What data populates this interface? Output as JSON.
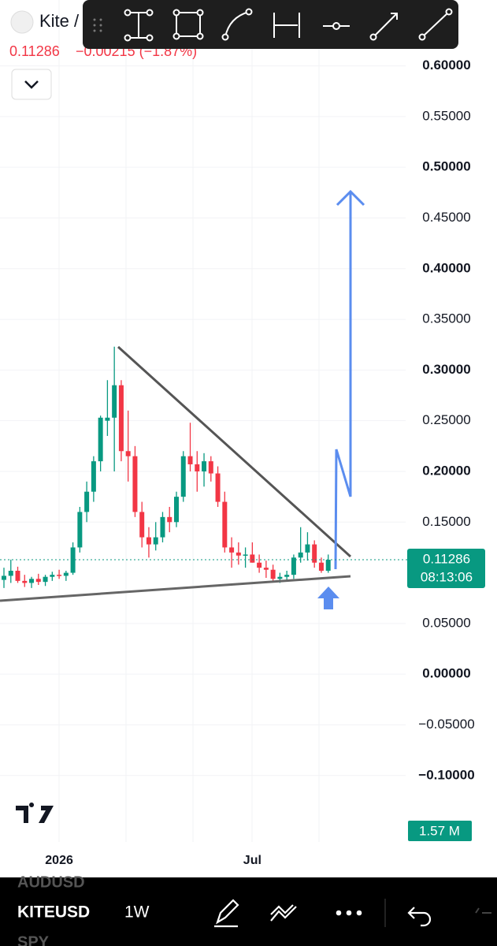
{
  "header": {
    "symbol": "Kite /",
    "price": "0.11286",
    "change": "−0.00215 (−1.87%)"
  },
  "chart_data": {
    "type": "candlestick",
    "categories": [
      null,
      null,
      null,
      null,
      null,
      null,
      null,
      null,
      "2026",
      null,
      null,
      null,
      null,
      null,
      null,
      null,
      null,
      null,
      null,
      null,
      null,
      null,
      null,
      null,
      null,
      null,
      null,
      null,
      null,
      null,
      null,
      null,
      null,
      null,
      null,
      null,
      "Jul",
      null,
      null,
      null,
      null,
      null,
      null,
      null,
      null,
      null,
      null,
      null
    ],
    "open": [
      0.093,
      0.097,
      0.102,
      0.092,
      0.09,
      0.094,
      0.091,
      0.096,
      0.098,
      0.097,
      0.1,
      0.125,
      0.16,
      0.18,
      0.21,
      0.25,
      0.253,
      0.285,
      0.22,
      0.215,
      0.16,
      0.135,
      0.128,
      0.135,
      0.155,
      0.15,
      0.175,
      0.215,
      0.207,
      0.2,
      0.21,
      0.198,
      0.17,
      0.125,
      0.12,
      0.117,
      0.118,
      0.11,
      0.105,
      0.103,
      0.094,
      0.096,
      0.098,
      0.115,
      0.12,
      0.128,
      0.11,
      0.102
    ],
    "high": [
      0.105,
      0.113,
      0.106,
      0.098,
      0.096,
      0.099,
      0.098,
      0.101,
      0.103,
      0.102,
      0.13,
      0.165,
      0.19,
      0.215,
      0.255,
      0.29,
      0.323,
      0.29,
      0.26,
      0.225,
      0.17,
      0.145,
      0.15,
      0.16,
      0.165,
      0.18,
      0.22,
      0.248,
      0.22,
      0.218,
      0.215,
      0.205,
      0.18,
      0.135,
      0.13,
      0.125,
      0.13,
      0.118,
      0.112,
      0.108,
      0.1,
      0.102,
      0.118,
      0.145,
      0.14,
      0.132,
      0.115,
      0.118
    ],
    "low": [
      0.085,
      0.09,
      0.09,
      0.086,
      0.085,
      0.088,
      0.087,
      0.092,
      0.094,
      0.092,
      0.098,
      0.12,
      0.15,
      0.17,
      0.2,
      0.235,
      0.2,
      0.21,
      0.19,
      0.155,
      0.125,
      0.115,
      0.122,
      0.13,
      0.14,
      0.145,
      0.17,
      0.2,
      0.18,
      0.185,
      0.19,
      0.165,
      0.12,
      0.105,
      0.108,
      0.105,
      0.11,
      0.1,
      0.095,
      0.092,
      0.09,
      0.092,
      0.094,
      0.11,
      0.112,
      0.105,
      0.1,
      0.1
    ],
    "close": [
      0.097,
      0.102,
      0.092,
      0.09,
      0.094,
      0.091,
      0.096,
      0.098,
      0.097,
      0.1,
      0.125,
      0.16,
      0.18,
      0.21,
      0.253,
      0.253,
      0.285,
      0.22,
      0.215,
      0.16,
      0.135,
      0.128,
      0.135,
      0.155,
      0.15,
      0.175,
      0.215,
      0.207,
      0.2,
      0.21,
      0.198,
      0.17,
      0.125,
      0.12,
      0.117,
      0.118,
      0.11,
      0.105,
      0.103,
      0.094,
      0.096,
      0.098,
      0.115,
      0.12,
      0.128,
      0.11,
      0.102,
      0.11286
    ],
    "up_color": "#089981",
    "down_color": "#f23645",
    "ylim": [
      -0.1655,
      0.665
    ],
    "yticks": [
      {
        "value": 0.6,
        "label": "0.60000"
      },
      {
        "value": 0.55,
        "label": "0.55000"
      },
      {
        "value": 0.5,
        "label": "0.50000"
      },
      {
        "value": 0.45,
        "label": "0.45000"
      },
      {
        "value": 0.4,
        "label": "0.40000"
      },
      {
        "value": 0.35,
        "label": "0.35000"
      },
      {
        "value": 0.3,
        "label": "0.30000"
      },
      {
        "value": 0.25,
        "label": "0.25000"
      },
      {
        "value": 0.2,
        "label": "0.20000"
      },
      {
        "value": 0.15,
        "label": "0.15000"
      },
      {
        "value": 0.05,
        "label": "0.05000"
      },
      {
        "value": 0,
        "label": "0.00000"
      },
      {
        "value": -0.05,
        "label": "−0.05000"
      },
      {
        "value": -0.1,
        "label": "−0.10000"
      }
    ],
    "grid": true,
    "last_price": 0.11286,
    "countdown": "08:13:06",
    "volume_label": "1.57 M"
  },
  "bottom_bar": {
    "list_above": "AUDUSD",
    "symbol": "KITEUSD",
    "interval": "1W",
    "list_below": "SPY"
  }
}
